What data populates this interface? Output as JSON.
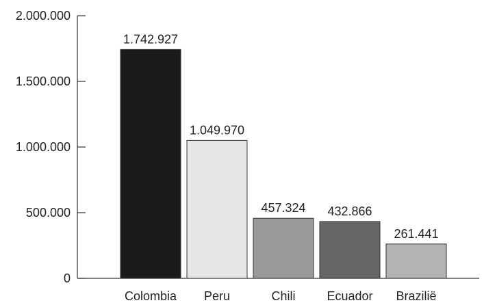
{
  "chart_data": {
    "type": "bar",
    "categories": [
      "Colombia",
      "Peru",
      "Chili",
      "Ecuador",
      "Brazilië"
    ],
    "values": [
      1742927,
      1049970,
      457324,
      432866,
      261441
    ],
    "value_labels": [
      "1.742.927",
      "1.049.970",
      "457.324",
      "432.866",
      "261.441"
    ],
    "y_ticks": [
      0,
      500000,
      1000000,
      1500000,
      2000000
    ],
    "y_tick_labels": [
      "0",
      "500.000",
      "1.000.000",
      "1.500.000",
      "2.000.000"
    ],
    "ylim": [
      0,
      2000000
    ],
    "grid": false,
    "colors": [
      "#1a1a1a",
      "#e6e6e6",
      "#999999",
      "#666666",
      "#b3b3b3"
    ],
    "title": "",
    "xlabel": "",
    "ylabel": ""
  }
}
